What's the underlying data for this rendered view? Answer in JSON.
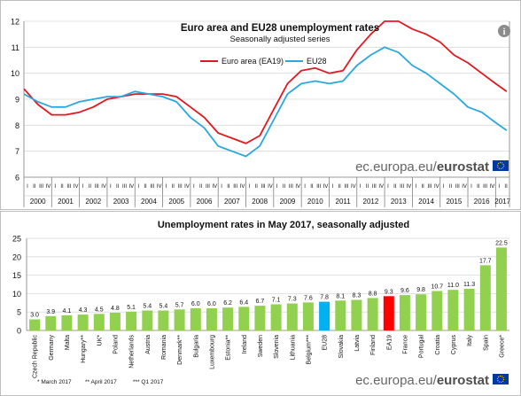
{
  "colors": {
    "ea19": "#e3171e",
    "eu28": "#29a8e0",
    "bar_green": "#92d050",
    "bar_ea19": "#ff0000",
    "bar_eu28": "#00b0f0",
    "brand_text": "#7f7f7f",
    "brand_bold": "#4f4f4f"
  },
  "info_icon": "info-icon",
  "flag_icon": "eu-flag-icon",
  "chart_data": [
    {
      "type": "line",
      "title": "Euro area and EU28 unemployment rates",
      "subtitle": "Seasonally adjusted series",
      "brand": {
        "prefix": "ec.europa.eu/",
        "bold": "eurostat"
      },
      "ylim": [
        6,
        12
      ],
      "yticks": [
        "6",
        "7",
        "8",
        "9",
        "10",
        "11",
        "12"
      ],
      "grid": true,
      "legend_position": "top-center",
      "years": [
        "2000",
        "2001",
        "2002",
        "2003",
        "2004",
        "2005",
        "2006",
        "2007",
        "2008",
        "2009",
        "2010",
        "2011",
        "2012",
        "2013",
        "2014",
        "2015",
        "2016",
        "2017"
      ],
      "quarter_labels": [
        "I",
        "II",
        "III",
        "IV"
      ],
      "x": [
        2000.0,
        2000.5,
        2001.0,
        2001.5,
        2002.0,
        2002.5,
        2003.0,
        2003.5,
        2004.0,
        2004.5,
        2005.0,
        2005.5,
        2006.0,
        2006.5,
        2007.0,
        2007.5,
        2008.0,
        2008.5,
        2009.0,
        2009.5,
        2010.0,
        2010.5,
        2011.0,
        2011.5,
        2012.0,
        2012.5,
        2013.0,
        2013.5,
        2014.0,
        2014.5,
        2015.0,
        2015.5,
        2016.0,
        2016.5,
        2017.0,
        2017.4
      ],
      "series": [
        {
          "name": "Euro area (EA19)",
          "color_key": "ea19",
          "values": [
            9.4,
            8.8,
            8.4,
            8.4,
            8.5,
            8.7,
            9.0,
            9.1,
            9.2,
            9.2,
            9.2,
            9.1,
            8.7,
            8.3,
            7.7,
            7.5,
            7.3,
            7.6,
            8.6,
            9.6,
            10.1,
            10.2,
            10.0,
            10.1,
            10.9,
            11.5,
            12.0,
            12.0,
            11.7,
            11.5,
            11.2,
            10.7,
            10.4,
            10.0,
            9.6,
            9.3
          ]
        },
        {
          "name": "EU28",
          "color_key": "eu28",
          "values": [
            9.2,
            8.9,
            8.7,
            8.7,
            8.9,
            9.0,
            9.1,
            9.1,
            9.3,
            9.2,
            9.1,
            8.9,
            8.3,
            7.9,
            7.2,
            7.0,
            6.8,
            7.2,
            8.2,
            9.2,
            9.6,
            9.7,
            9.6,
            9.7,
            10.3,
            10.7,
            11.0,
            10.8,
            10.3,
            10.0,
            9.6,
            9.2,
            8.7,
            8.5,
            8.1,
            7.8
          ]
        }
      ]
    },
    {
      "type": "bar",
      "title": "Unemployment rates in May 2017, seasonally adjusted",
      "brand": {
        "prefix": "ec.europa.eu/",
        "bold": "eurostat"
      },
      "ylim": [
        0,
        25
      ],
      "yticks": [
        "0",
        "5",
        "10",
        "15",
        "20",
        "25"
      ],
      "grid": true,
      "categories": [
        "Czech Republic",
        "Germany",
        "Malta",
        "Hungary**",
        "UK*",
        "Poland",
        "Netherlands",
        "Austria",
        "Romania",
        "Denmark**",
        "Bulgaria",
        "Luxembourg",
        "Estonia**",
        "Ireland",
        "Sweden",
        "Slovenia",
        "Lithuania",
        "Belgium***",
        "EU28",
        "Slovakia",
        "Latvia",
        "Finland",
        "EA19",
        "France",
        "Portugal",
        "Croatia",
        "Cyprus",
        "Italy",
        "Spain",
        "Greece*"
      ],
      "values": [
        3.0,
        3.9,
        4.1,
        4.3,
        4.5,
        4.8,
        5.1,
        5.4,
        5.4,
        5.7,
        6.0,
        6.0,
        6.2,
        6.4,
        6.7,
        7.1,
        7.3,
        7.6,
        7.8,
        8.1,
        8.3,
        8.8,
        9.3,
        9.6,
        9.8,
        10.7,
        11.0,
        11.3,
        17.7,
        22.5
      ],
      "value_labels": [
        "3.0",
        "3.9",
        "4.1",
        "4.3",
        "4.5",
        "4.8",
        "5.1",
        "5.4",
        "5.4",
        "5.7",
        "6.0",
        "6.0",
        "6.2",
        "6.4",
        "6.7",
        "7.1",
        "7.3",
        "7.6",
        "7.8",
        "8.1",
        "8.3",
        "8.8",
        "9.3",
        "9.6",
        "9.8",
        "10.7",
        "11.0",
        "11.3",
        "17.7",
        "22.5"
      ],
      "bar_color_keys": [
        "bar_green",
        "bar_green",
        "bar_green",
        "bar_green",
        "bar_green",
        "bar_green",
        "bar_green",
        "bar_green",
        "bar_green",
        "bar_green",
        "bar_green",
        "bar_green",
        "bar_green",
        "bar_green",
        "bar_green",
        "bar_green",
        "bar_green",
        "bar_green",
        "bar_eu28",
        "bar_green",
        "bar_green",
        "bar_green",
        "bar_ea19",
        "bar_green",
        "bar_green",
        "bar_green",
        "bar_green",
        "bar_green",
        "bar_green",
        "bar_green"
      ],
      "footnotes": [
        "* March 2017",
        "** April 2017",
        "*** Q1 2017"
      ]
    }
  ]
}
